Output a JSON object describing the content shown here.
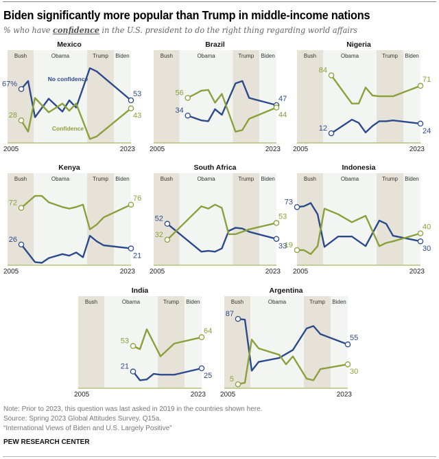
{
  "header": {
    "title": "Biden significantly more popular than Trump in middle-income nations",
    "subtitle_pre": "% who have ",
    "subtitle_em": "confidence",
    "subtitle_post": " in the U.S. president to do the right thing regarding world affairs"
  },
  "footer": {
    "note": "Note: Prior to 2023, this question was last asked in 2019 in the countries shown here.",
    "source": "Source: Spring 2023 Global Attitudes Survey. Q15a.",
    "report": "“International Views of Biden and U.S. Largely Positive”",
    "brand": "PEW RESEARCH CENTER"
  },
  "colors": {
    "no_confidence": "#2b4a8b",
    "confidence": "#8aa03a",
    "band_dark": "#e6e2d8",
    "band_light": "#f3f5f2",
    "baseline": "#b5c27a"
  },
  "chart_data": {
    "type": "line",
    "x_range": [
      2005,
      2023
    ],
    "ylim": [
      0,
      100
    ],
    "x_tick_labels": [
      "2005",
      "2023"
    ],
    "presidencies": [
      {
        "label": "Bush",
        "start": 2005,
        "end": 2008.8
      },
      {
        "label": "Obama",
        "start": 2008.8,
        "end": 2016.6
      },
      {
        "label": "Trump",
        "start": 2016.6,
        "end": 2020.5
      },
      {
        "label": "Biden",
        "start": 2020.5,
        "end": 2023
      }
    ],
    "legend": {
      "no_confidence": "No confidence",
      "confidence": "Confidence"
    },
    "panels": [
      {
        "country": "Mexico",
        "series": [
          {
            "name": "No confidence",
            "x": [
              2007,
              2008,
              2009,
              2011,
              2013,
              2014,
              2015,
              2017,
              2018,
              2023
            ],
            "values": [
              67,
              77,
              32,
              55,
              39,
              53,
              44,
              93,
              89,
              53
            ],
            "start_label": "67%",
            "end_label": "53"
          },
          {
            "name": "Confidence",
            "x": [
              2007,
              2008,
              2009,
              2011,
              2013,
              2014,
              2015,
              2017,
              2018,
              2023
            ],
            "values": [
              28,
              14,
              56,
              38,
              49,
              40,
              49,
              5,
              8,
              43
            ],
            "start_label": "28",
            "end_label": "43"
          }
        ]
      },
      {
        "country": "Brazil",
        "series": [
          {
            "name": "No confidence",
            "x": [
              2010,
              2012,
              2013,
              2014,
              2015,
              2017,
              2018,
              2019,
              2023
            ],
            "values": [
              34,
              28,
              27,
              42,
              35,
              74,
              77,
              56,
              47
            ],
            "start_label": "34",
            "end_label": "47"
          },
          {
            "name": "Confidence",
            "x": [
              2010,
              2012,
              2013,
              2014,
              2015,
              2017,
              2018,
              2019,
              2023
            ],
            "values": [
              56,
              65,
              66,
              50,
              61,
              14,
              16,
              30,
              44
            ],
            "start_label": "56",
            "end_label": "44"
          }
        ]
      },
      {
        "country": "Nigeria",
        "series": [
          {
            "name": "No confidence",
            "x": [
              2010,
              2013,
              2014,
              2015,
              2016,
              2017,
              2018,
              2019,
              2023
            ],
            "values": [
              12,
              29,
              25,
              13,
              21,
              27,
              27,
              28,
              24
            ],
            "start_label": "12",
            "end_label": "24"
          },
          {
            "name": "Confidence",
            "x": [
              2010,
              2013,
              2014,
              2015,
              2016,
              2017,
              2018,
              2019,
              2023
            ],
            "values": [
              84,
              49,
              49,
              69,
              59,
              58,
              58,
              58,
              71
            ],
            "start_label": "84",
            "end_label": "71"
          }
        ]
      },
      {
        "country": "Kenya",
        "series": [
          {
            "name": "No confidence",
            "x": [
              2007,
              2009,
              2010,
              2011,
              2013,
              2014,
              2015,
              2016,
              2017,
              2018,
              2019,
              2023
            ],
            "values": [
              26,
              4,
              3,
              9,
              14,
              12,
              16,
              10,
              37,
              30,
              25,
              21
            ],
            "start_label": "26",
            "end_label": "21"
          },
          {
            "name": "Confidence",
            "x": [
              2007,
              2009,
              2010,
              2011,
              2013,
              2014,
              2015,
              2016,
              2017,
              2018,
              2019,
              2023
            ],
            "values": [
              72,
              87,
              87,
              79,
              73,
              71,
              73,
              76,
              45,
              51,
              60,
              76
            ],
            "start_label": "72",
            "end_label": "76"
          }
        ]
      },
      {
        "country": "South Africa",
        "series": [
          {
            "name": "No confidence",
            "x": [
              2007,
              2012,
              2013,
              2014,
              2015,
              2016,
              2017,
              2018,
              2019,
              2023
            ],
            "values": [
              52,
              17,
              18,
              17,
              21,
              43,
              47,
              46,
              42,
              33
            ],
            "start_label": "52",
            "end_label": "33"
          },
          {
            "name": "Confidence",
            "x": [
              2007,
              2012,
              2013,
              2014,
              2015,
              2016,
              2017,
              2018,
              2019,
              2023
            ],
            "values": [
              32,
              74,
              71,
              76,
              72,
              39,
              39,
              42,
              45,
              53
            ],
            "start_label": "32",
            "end_label": "53"
          }
        ]
      },
      {
        "country": "Indonesia",
        "series": [
          {
            "name": "No confidence",
            "x": [
              2005,
              2006,
              2007,
              2008,
              2009,
              2011,
              2013,
              2015,
              2017,
              2018,
              2019,
              2023
            ],
            "values": [
              73,
              74,
              78,
              64,
              23,
              36,
              36,
              24,
              56,
              52,
              37,
              30
            ],
            "start_label": "73",
            "end_label": "30"
          },
          {
            "name": "Confidence",
            "x": [
              2005,
              2006,
              2007,
              2008,
              2009,
              2011,
              2013,
              2014,
              2015,
              2017,
              2018,
              2019,
              2023
            ],
            "values": [
              19,
              19,
              14,
              24,
              71,
              64,
              54,
              58,
              62,
              24,
              28,
              30,
              40
            ],
            "start_label": "19",
            "end_label": "40"
          }
        ]
      },
      {
        "country": "India",
        "series": [
          {
            "name": "No confidence",
            "x": [
              2013,
              2014,
              2015,
              2016,
              2017,
              2019,
              2023
            ],
            "values": [
              21,
              10,
              11,
              18,
              17,
              17,
              25
            ],
            "start_label": "21",
            "end_label": "25"
          },
          {
            "name": "Confidence",
            "x": [
              2013,
              2014,
              2015,
              2017,
              2019,
              2023
            ],
            "values": [
              53,
              49,
              74,
              40,
              56,
              64
            ],
            "start_label": "53",
            "end_label": "64"
          }
        ]
      },
      {
        "country": "Argentina",
        "series": [
          {
            "name": "No confidence",
            "x": [
              2007,
              2008,
              2009,
              2010,
              2013,
              2015,
              2017,
              2018,
              2019,
              2023
            ],
            "values": [
              87,
              86,
              22,
              33,
              38,
              48,
              75,
              78,
              68,
              55
            ],
            "start_label": "87",
            "end_label": "55"
          },
          {
            "name": "Confidence",
            "x": [
              2007,
              2008,
              2009,
              2010,
              2013,
              2014,
              2015,
              2017,
              2018,
              2019,
              2023
            ],
            "values": [
              5,
              7,
              61,
              50,
              42,
              30,
              40,
              12,
              10,
              24,
              30
            ],
            "start_label": "5",
            "end_label": "30"
          }
        ]
      }
    ]
  }
}
